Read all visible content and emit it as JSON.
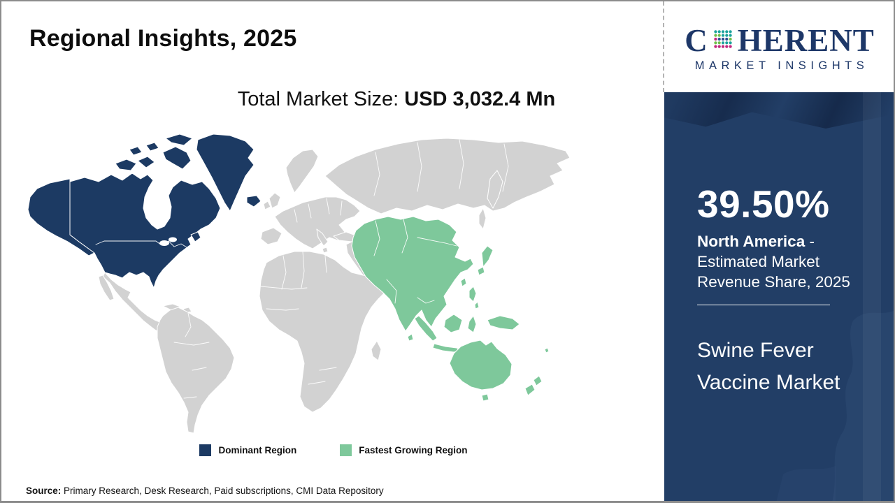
{
  "header": {
    "title": "Regional Insights, 2025"
  },
  "market_size": {
    "label": "Total Market Size: ",
    "value": "USD 3,032.4 Mn"
  },
  "map": {
    "colors": {
      "dominant": "#1c3a63",
      "fastest_growing": "#7ec89b",
      "other": "#d2d2d2",
      "border": "#ffffff"
    }
  },
  "legend": {
    "items": [
      {
        "label": "Dominant Region",
        "color": "#1c3a63"
      },
      {
        "label": "Fastest Growing Region",
        "color": "#7ec89b"
      }
    ]
  },
  "source": {
    "label": "Source:",
    "text": " Primary Research, Desk Research, Paid subscriptions, CMI Data Repository"
  },
  "sidebar": {
    "background": "#223e66",
    "logo": {
      "c": "C",
      "rest": "HERENT",
      "subtitle": "MARKET INSIGHTS",
      "color": "#1d3768"
    },
    "stat": {
      "value": "39.50%",
      "region": "North America",
      "description": " - Estimated Market Revenue Share, 2025"
    },
    "market_name": "Swine Fever Vaccine Market"
  }
}
